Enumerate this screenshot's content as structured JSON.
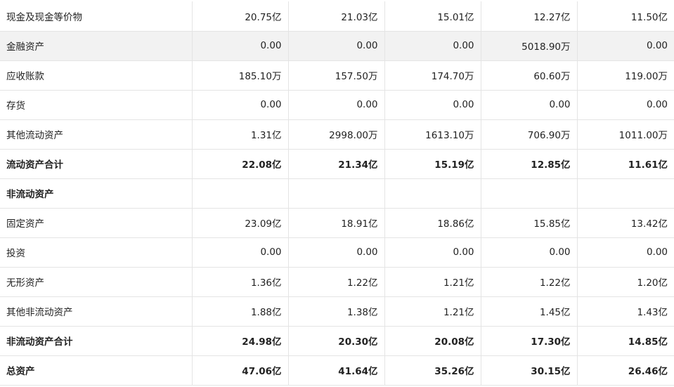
{
  "rows": [
    {
      "label": "现金及现金等价物",
      "values": [
        "20.75亿",
        "21.03亿",
        "15.01亿",
        "12.27亿",
        "11.50亿"
      ],
      "bold": false,
      "shaded": false
    },
    {
      "label": "金融资产",
      "values": [
        "0.00",
        "0.00",
        "0.00",
        "5018.90万",
        "0.00"
      ],
      "bold": false,
      "shaded": true
    },
    {
      "label": "应收账款",
      "values": [
        "185.10万",
        "157.50万",
        "174.70万",
        "60.60万",
        "119.00万"
      ],
      "bold": false,
      "shaded": false
    },
    {
      "label": "存货",
      "values": [
        "0.00",
        "0.00",
        "0.00",
        "0.00",
        "0.00"
      ],
      "bold": false,
      "shaded": false
    },
    {
      "label": "其他流动资产",
      "values": [
        "1.31亿",
        "2998.00万",
        "1613.10万",
        "706.90万",
        "1011.00万"
      ],
      "bold": false,
      "shaded": false
    },
    {
      "label": "流动资产合计",
      "values": [
        "22.08亿",
        "21.34亿",
        "15.19亿",
        "12.85亿",
        "11.61亿"
      ],
      "bold": true,
      "shaded": false
    },
    {
      "label": "非流动资产",
      "values": [
        "",
        "",
        "",
        "",
        ""
      ],
      "bold": true,
      "shaded": false,
      "section": true
    },
    {
      "label": "固定资产",
      "values": [
        "23.09亿",
        "18.91亿",
        "18.86亿",
        "15.85亿",
        "13.42亿"
      ],
      "bold": false,
      "shaded": false
    },
    {
      "label": "投资",
      "values": [
        "0.00",
        "0.00",
        "0.00",
        "0.00",
        "0.00"
      ],
      "bold": false,
      "shaded": false
    },
    {
      "label": "无形资产",
      "values": [
        "1.36亿",
        "1.22亿",
        "1.21亿",
        "1.22亿",
        "1.20亿"
      ],
      "bold": false,
      "shaded": false
    },
    {
      "label": "其他非流动资产",
      "values": [
        "1.88亿",
        "1.38亿",
        "1.21亿",
        "1.45亿",
        "1.43亿"
      ],
      "bold": false,
      "shaded": false
    },
    {
      "label": "非流动资产合计",
      "values": [
        "24.98亿",
        "20.30亿",
        "20.08亿",
        "17.30亿",
        "14.85亿"
      ],
      "bold": true,
      "shaded": false
    },
    {
      "label": "总资产",
      "values": [
        "47.06亿",
        "41.64亿",
        "35.26亿",
        "30.15亿",
        "26.46亿"
      ],
      "bold": true,
      "shaded": false
    }
  ]
}
